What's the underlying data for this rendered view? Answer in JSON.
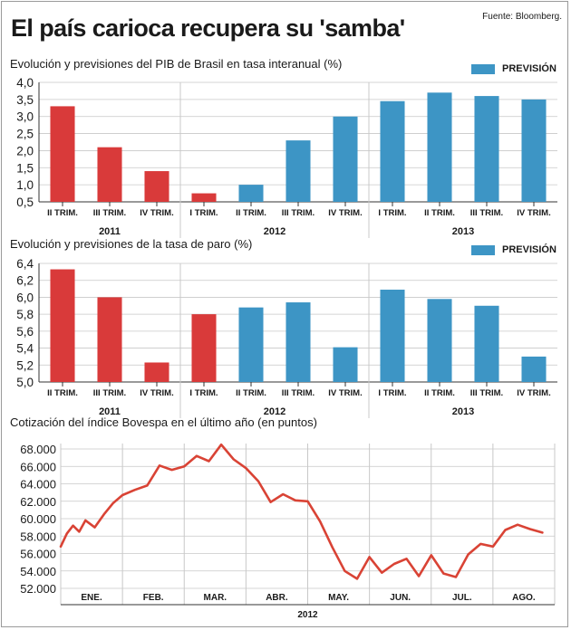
{
  "title": "El país carioca recupera su 'samba'",
  "source": "Fuente: Bloomberg.",
  "colors": {
    "actual": "#d93a3a",
    "forecast": "#3d95c5",
    "line": "#d94335",
    "grid": "#c8c8c8",
    "text": "#1a1a1a"
  },
  "chart_data": [
    {
      "type": "bar",
      "title": "Evolución y previsiones del PIB de Brasil en tasa interanual (%)",
      "legend": "PREVISIÓN",
      "legend_position": "top-right",
      "categories": [
        "II TRIM.",
        "III TRIM.",
        "IV TRIM.",
        "I TRIM.",
        "II TRIM.",
        "III TRIM.",
        "IV TRIM.",
        "I TRIM.",
        "II TRIM.",
        "III TRIM.",
        "IV TRIM."
      ],
      "groups": [
        {
          "label": "2011",
          "count": 3
        },
        {
          "label": "2012",
          "count": 4
        },
        {
          "label": "2013",
          "count": 4
        }
      ],
      "values": [
        3.3,
        2.1,
        1.4,
        0.75,
        1.0,
        2.3,
        3.0,
        3.45,
        3.7,
        3.6,
        3.5
      ],
      "forecast": [
        false,
        false,
        false,
        false,
        true,
        true,
        true,
        true,
        true,
        true,
        true
      ],
      "ylim": [
        0.5,
        4.0
      ],
      "yticks": [
        "4,0",
        "3,5",
        "3,0",
        "2,5",
        "2,0",
        "1,5",
        "1,0",
        "0,5"
      ],
      "grid": true
    },
    {
      "type": "bar",
      "title": "Evolución y previsiones de la tasa de paro (%)",
      "legend": "PREVISIÓN",
      "legend_position": "top-right",
      "categories": [
        "II TRIM.",
        "III TRIM.",
        "IV TRIM.",
        "I TRIM.",
        "II TRIM.",
        "III TRIM.",
        "IV TRIM.",
        "I TRIM.",
        "II TRIM.",
        "III TRIM.",
        "IV TRIM."
      ],
      "groups": [
        {
          "label": "2011",
          "count": 3
        },
        {
          "label": "2012",
          "count": 4
        },
        {
          "label": "2013",
          "count": 4
        }
      ],
      "values": [
        6.33,
        6.0,
        5.23,
        5.8,
        5.88,
        5.94,
        5.41,
        6.09,
        5.98,
        5.9,
        5.3
      ],
      "forecast": [
        false,
        false,
        false,
        false,
        true,
        true,
        true,
        true,
        true,
        true,
        true
      ],
      "ylim": [
        5.0,
        6.4
      ],
      "yticks": [
        "6,4",
        "6,2",
        "6,0",
        "5,8",
        "5,6",
        "5,4",
        "5,2",
        "5,0"
      ],
      "grid": true
    },
    {
      "type": "line",
      "title": "Cotización del índice Bovespa en el último año (en puntos)",
      "months": [
        "ENE.",
        "FEB.",
        "MAR.",
        "ABR.",
        "MAY.",
        "JUN.",
        "JUL.",
        "AGO."
      ],
      "year": "2012",
      "ylim": [
        52000,
        68000
      ],
      "yticks": [
        "68.000",
        "66.000",
        "64.000",
        "62.000",
        "60.000",
        "58.000",
        "56.000",
        "54.000",
        "52.000"
      ],
      "grid": true,
      "x": [
        0.0,
        0.1,
        0.2,
        0.3,
        0.4,
        0.55,
        0.7,
        0.85,
        1.0,
        1.2,
        1.4,
        1.6,
        1.8,
        2.0,
        2.2,
        2.4,
        2.6,
        2.8,
        3.0,
        3.2,
        3.4,
        3.6,
        3.8,
        4.0,
        4.2,
        4.4,
        4.6,
        4.8,
        5.0,
        5.2,
        5.4,
        5.6,
        5.8,
        6.0,
        6.2,
        6.4,
        6.6,
        6.8,
        7.0,
        7.2,
        7.4,
        7.6,
        7.8
      ],
      "values": [
        56800,
        58300,
        59200,
        58500,
        59800,
        59000,
        60500,
        61800,
        62700,
        63300,
        63800,
        66100,
        65600,
        66000,
        67200,
        66600,
        68500,
        66800,
        65800,
        64300,
        61900,
        62800,
        62100,
        62000,
        59700,
        56700,
        54000,
        53100,
        55600,
        53800,
        54800,
        55400,
        53400,
        55800,
        53700,
        53300,
        55900,
        57100,
        56800,
        58700,
        59300,
        58800,
        58400
      ]
    }
  ]
}
